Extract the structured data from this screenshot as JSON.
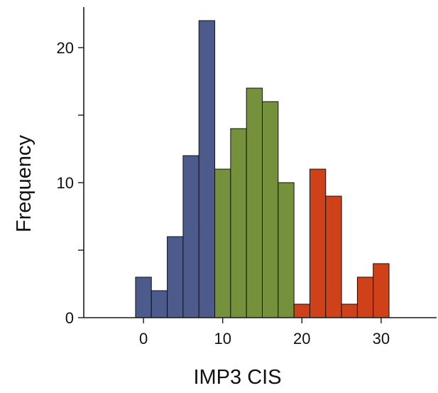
{
  "chart_data": {
    "type": "bar",
    "subtype": "histogram",
    "title": "",
    "xlabel": "IMP3 CIS",
    "ylabel": "Frequency",
    "xlim": [
      -7,
      37
    ],
    "ylim": [
      0,
      23
    ],
    "x_ticks": [
      {
        "value": 0,
        "label": "0"
      },
      {
        "value": 10,
        "label": "10"
      },
      {
        "value": 20,
        "label": "20"
      },
      {
        "value": 30,
        "label": "30"
      }
    ],
    "y_ticks": [
      {
        "value": 0,
        "label": "0"
      },
      {
        "value": 5,
        "label": ""
      },
      {
        "value": 10,
        "label": "10"
      },
      {
        "value": 15,
        "label": ""
      },
      {
        "value": 20,
        "label": "20"
      }
    ],
    "grid": false,
    "bin_width": 2,
    "bins": [
      {
        "x0": -1,
        "x1": 1,
        "count": 3,
        "group": "low"
      },
      {
        "x0": 1,
        "x1": 3,
        "count": 2,
        "group": "low"
      },
      {
        "x0": 3,
        "x1": 5,
        "count": 6,
        "group": "low"
      },
      {
        "x0": 5,
        "x1": 7,
        "count": 12,
        "group": "low"
      },
      {
        "x0": 7,
        "x1": 9,
        "count": 22,
        "group": "low"
      },
      {
        "x0": 9,
        "x1": 11,
        "count": 11,
        "group": "mid"
      },
      {
        "x0": 11,
        "x1": 13,
        "count": 14,
        "group": "mid"
      },
      {
        "x0": 13,
        "x1": 15,
        "count": 17,
        "group": "mid"
      },
      {
        "x0": 15,
        "x1": 17,
        "count": 16,
        "group": "mid"
      },
      {
        "x0": 17,
        "x1": 19,
        "count": 10,
        "group": "mid"
      },
      {
        "x0": 19,
        "x1": 21,
        "count": 1,
        "group": "high"
      },
      {
        "x0": 21,
        "x1": 23,
        "count": 11,
        "group": "high"
      },
      {
        "x0": 23,
        "x1": 25,
        "count": 9,
        "group": "high"
      },
      {
        "x0": 25,
        "x1": 27,
        "count": 1,
        "group": "high"
      },
      {
        "x0": 27,
        "x1": 29,
        "count": 3,
        "group": "high"
      },
      {
        "x0": 29,
        "x1": 31,
        "count": 4,
        "group": "high"
      }
    ],
    "group_colors": {
      "low": "#4d5a8c",
      "mid": "#76913b",
      "high": "#cf4118"
    }
  }
}
